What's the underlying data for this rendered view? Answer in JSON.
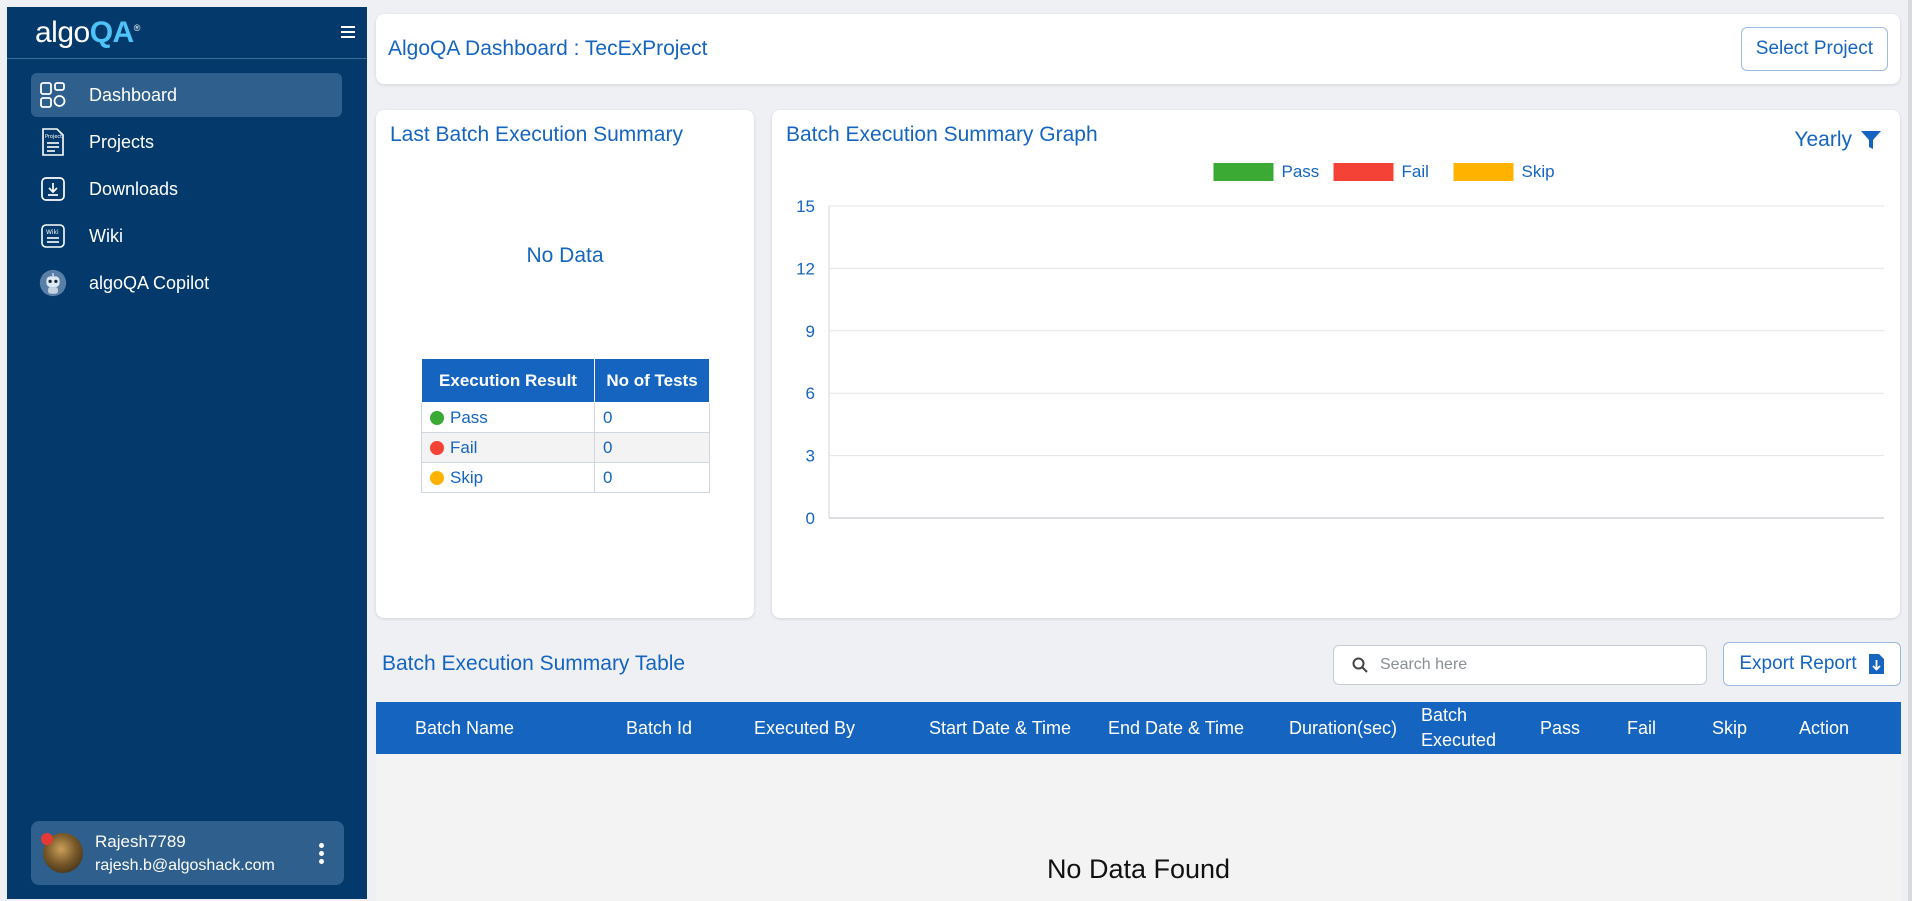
{
  "sidebar": {
    "logo_prefix": "algo",
    "logo_suffix": "QA",
    "logo_mark": "®",
    "menu_icon": "hamburger-icon",
    "items": [
      {
        "label": "Dashboard",
        "icon": "dashboard-icon",
        "active": true
      },
      {
        "label": "Projects",
        "icon": "project-document-icon",
        "active": false
      },
      {
        "label": "Downloads",
        "icon": "download-icon",
        "active": false
      },
      {
        "label": "Wiki",
        "icon": "wiki-icon",
        "active": false
      },
      {
        "label": "algoQA Copilot",
        "icon": "copilot-robot-icon",
        "active": false
      }
    ],
    "user": {
      "name": "Rajesh7789",
      "email": "rajesh.b@algoshack.com",
      "status_color": "#e53935"
    }
  },
  "header": {
    "title": "AlgoQA Dashboard : TecExProject",
    "select_project_label": "Select Project"
  },
  "last_batch": {
    "title": "Last Batch Execution Summary",
    "no_data": "No Data",
    "columns": [
      "Execution Result",
      "No of Tests"
    ],
    "rows": [
      {
        "result": "Pass",
        "count": "0",
        "color": "#3aaa35"
      },
      {
        "result": "Fail",
        "count": "0",
        "color": "#f44336"
      },
      {
        "result": "Skip",
        "count": "0",
        "color": "#ffb300"
      }
    ]
  },
  "graph": {
    "filter_label": "Yearly",
    "filter_icon": "funnel-icon"
  },
  "chart_data": {
    "type": "bar",
    "title": "Batch Execution Summary Graph",
    "categories": [],
    "series": [
      {
        "name": "Pass",
        "values": [],
        "color": "#3aaa35"
      },
      {
        "name": "Fail",
        "values": [],
        "color": "#f44336"
      },
      {
        "name": "Skip",
        "values": [],
        "color": "#ffb300"
      }
    ],
    "yticks": [
      "0",
      "3",
      "6",
      "9",
      "12",
      "15"
    ],
    "ylim": [
      0,
      15
    ],
    "grid": true,
    "legend_position": "top-center"
  },
  "batch_table": {
    "title": "Batch Execution Summary Table",
    "search_placeholder": "Search here",
    "export_label": "Export Report",
    "columns": [
      "Batch Name",
      "Batch Id",
      "Executed By",
      "Start Date & Time",
      "End Date & Time",
      "Duration(sec)",
      "Batch Executed",
      "Pass",
      "Fail",
      "Skip",
      "Action"
    ],
    "empty_text": "No Data Found"
  }
}
